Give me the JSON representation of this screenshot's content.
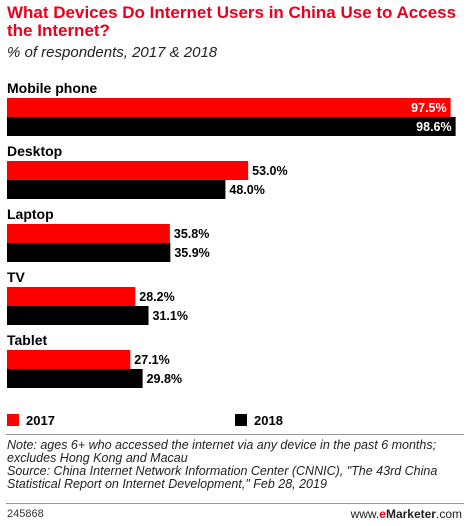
{
  "title": "What Devices Do Internet Users in China Use to Access the Internet?",
  "subtitle": "% of respondents, 2017 & 2018",
  "legend": [
    {
      "label": "2017",
      "color": "#ff0000"
    },
    {
      "label": "2018",
      "color": "#000000"
    }
  ],
  "note": "Note: ages 6+ who accessed the internet via any device in the past 6 months; excludes Hong Kong and Macau",
  "source": "Source: China Internet Network Information Center (CNNIC), \"The 43rd China Statistical Report on Internet Development,\" Feb 28, 2019",
  "footer": {
    "id": "245868",
    "brand_e": "e",
    "brand_rest": "Marketer",
    "brand_suffix": ".com"
  },
  "chart_data": {
    "type": "bar",
    "orientation": "horizontal",
    "title": "What Devices Do Internet Users in China Use to Access the Internet?",
    "subtitle": "% of respondents, 2017 & 2018",
    "categories": [
      "Mobile phone",
      "Desktop",
      "Laptop",
      "TV",
      "Tablet"
    ],
    "series": [
      {
        "name": "2017",
        "color": "#ff0000",
        "values": [
          97.5,
          53.0,
          35.8,
          28.2,
          27.1
        ],
        "labels": [
          "97.5%",
          "53.0%",
          "35.8%",
          "28.2%",
          "27.1%"
        ]
      },
      {
        "name": "2018",
        "color": "#000000",
        "values": [
          98.6,
          48.0,
          35.9,
          31.1,
          29.8
        ],
        "labels": [
          "98.6%",
          "48.0%",
          "35.9%",
          "31.1%",
          "29.8%"
        ]
      }
    ],
    "xlim": [
      0,
      100
    ],
    "grid": false,
    "legend_position": "bottom-left"
  }
}
